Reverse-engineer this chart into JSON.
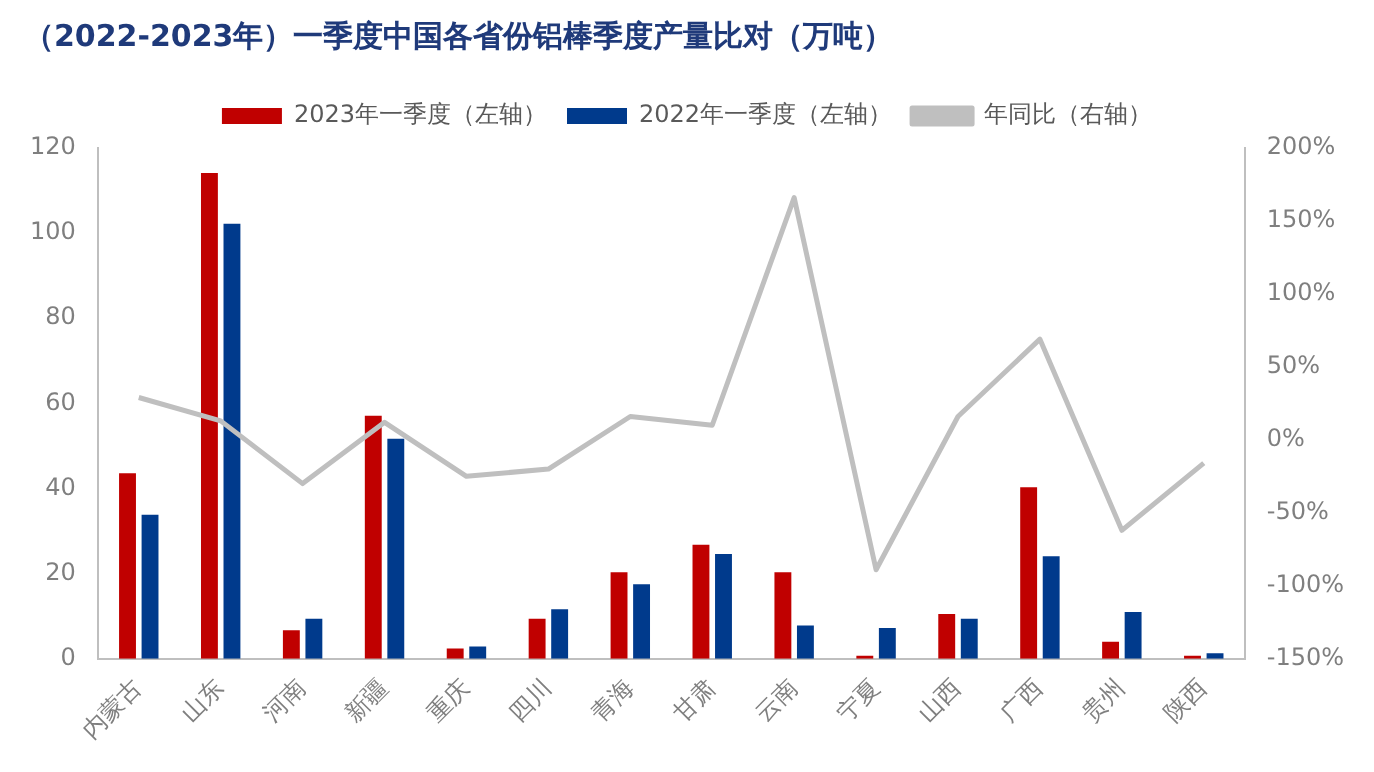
{
  "chart_data": {
    "type": "bar",
    "title": "（2022-2023年）一季度中国各省份铝棒季度产量比对（万吨）",
    "categories": [
      "内蒙古",
      "山东",
      "河南",
      "新疆",
      "重庆",
      "四川",
      "青海",
      "甘肃",
      "云南",
      "宁夏",
      "山西",
      "广西",
      "贵州",
      "陕西"
    ],
    "series": [
      {
        "name": "2023年一季度（左轴）",
        "color": "#c00000",
        "values": [
          43.6,
          114.1,
          6.7,
          57.1,
          2.4,
          9.4,
          20.3,
          26.8,
          20.3,
          0.7,
          10.5,
          40.3,
          4.0,
          0.7
        ]
      },
      {
        "name": "2022年一季度（左轴）",
        "color": "#003a8c",
        "values": [
          33.8,
          102.2,
          9.4,
          51.7,
          2.9,
          11.6,
          17.5,
          24.6,
          7.8,
          7.2,
          9.4,
          24.1,
          11.0,
          1.3
        ]
      },
      {
        "name": "年同比（右轴）",
        "type": "line",
        "axis": "y2",
        "color": "#bfbfbf",
        "values": [
          29,
          13,
          -30,
          12,
          -25,
          -20,
          16,
          10,
          166,
          -89,
          16,
          69,
          -62,
          -16
        ]
      }
    ],
    "ylim": [
      0,
      120
    ],
    "yticks": [
      0,
      20,
      40,
      60,
      80,
      100,
      120
    ],
    "y2lim": [
      -150,
      200
    ],
    "y2ticks": [
      {
        "value": -150,
        "label": "-150%"
      },
      {
        "value": -100,
        "label": "-100%"
      },
      {
        "value": -50,
        "label": "-50%"
      },
      {
        "value": 0,
        "label": "0%"
      },
      {
        "value": 50,
        "label": "50%"
      },
      {
        "value": 100,
        "label": "100%"
      },
      {
        "value": 150,
        "label": "150%"
      },
      {
        "value": 200,
        "label": "200%"
      }
    ],
    "grid": false,
    "legend": "top",
    "marker": "none",
    "line_style": "solid"
  }
}
